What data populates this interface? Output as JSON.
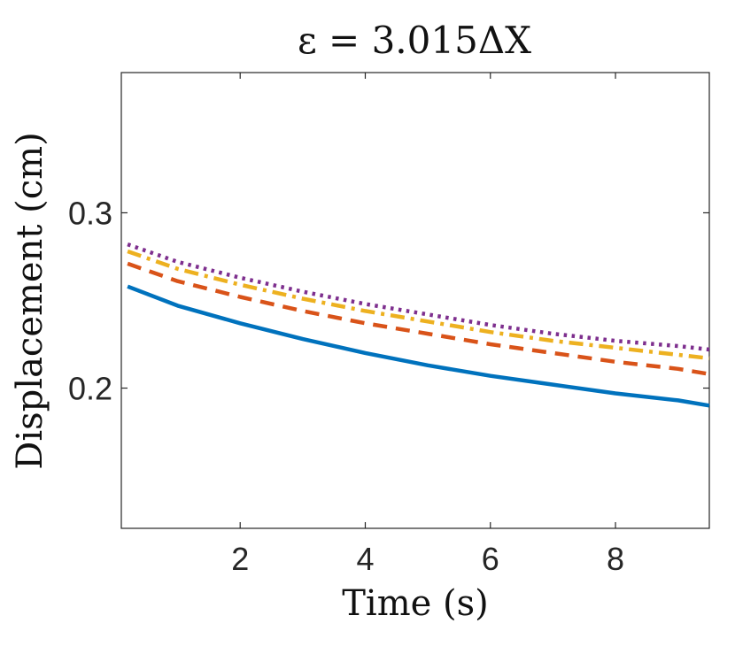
{
  "chart_data": {
    "type": "line",
    "title": "ε = 3.015ΔX",
    "xlabel": "Time (s)",
    "ylabel": "Displacement (cm)",
    "xlim": [
      0.1,
      9.5
    ],
    "ylim": [
      0.12,
      0.38
    ],
    "xticks": [
      2,
      4,
      6,
      8
    ],
    "yticks": [
      0.2,
      0.3
    ],
    "xtick_labels": [
      "2",
      "4",
      "6",
      "8"
    ],
    "ytick_labels": [
      "0.2",
      "0.3"
    ],
    "grid": false,
    "legend": "none",
    "x": [
      0.2,
      1.0,
      2.0,
      3.0,
      4.0,
      5.0,
      6.0,
      7.0,
      8.0,
      9.0,
      9.5
    ],
    "series": [
      {
        "name": "solid",
        "color": "#0072BD",
        "style": "solid",
        "values": [
          0.258,
          0.247,
          0.237,
          0.228,
          0.22,
          0.213,
          0.207,
          0.202,
          0.197,
          0.193,
          0.19
        ]
      },
      {
        "name": "dashed",
        "color": "#D95319",
        "style": "dashed",
        "values": [
          0.271,
          0.261,
          0.252,
          0.244,
          0.237,
          0.231,
          0.225,
          0.22,
          0.215,
          0.211,
          0.208
        ]
      },
      {
        "name": "dash-dot",
        "color": "#EDB120",
        "style": "dashdot",
        "values": [
          0.278,
          0.268,
          0.259,
          0.251,
          0.244,
          0.238,
          0.232,
          0.227,
          0.223,
          0.219,
          0.217
        ]
      },
      {
        "name": "dotted",
        "color": "#7E2F8E",
        "style": "dotted",
        "values": [
          0.282,
          0.272,
          0.263,
          0.255,
          0.248,
          0.242,
          0.236,
          0.231,
          0.227,
          0.224,
          0.222
        ]
      }
    ]
  }
}
